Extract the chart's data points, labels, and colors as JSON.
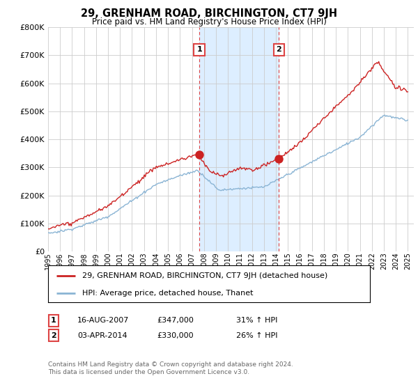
{
  "title": "29, GRENHAM ROAD, BIRCHINGTON, CT7 9JH",
  "subtitle": "Price paid vs. HM Land Registry's House Price Index (HPI)",
  "ylim": [
    0,
    800000
  ],
  "xlim_start": 1995.0,
  "xlim_end": 2025.5,
  "hpi_color": "#8ab4d4",
  "price_color": "#cc2222",
  "vline_color": "#dd4444",
  "shade_color": "#ddeeff",
  "marker1_x": 2007.62,
  "marker1_y": 347000,
  "marker2_x": 2014.25,
  "marker2_y": 330000,
  "annotation1": [
    "1",
    "16-AUG-2007",
    "£347,000",
    "31% ↑ HPI"
  ],
  "annotation2": [
    "2",
    "03-APR-2014",
    "£330,000",
    "26% ↑ HPI"
  ],
  "legend_line1": "29, GRENHAM ROAD, BIRCHINGTON, CT7 9JH (detached house)",
  "legend_line2": "HPI: Average price, detached house, Thanet",
  "footer": "Contains HM Land Registry data © Crown copyright and database right 2024.\nThis data is licensed under the Open Government Licence v3.0.",
  "background_color": "#ffffff",
  "grid_color": "#cccccc"
}
